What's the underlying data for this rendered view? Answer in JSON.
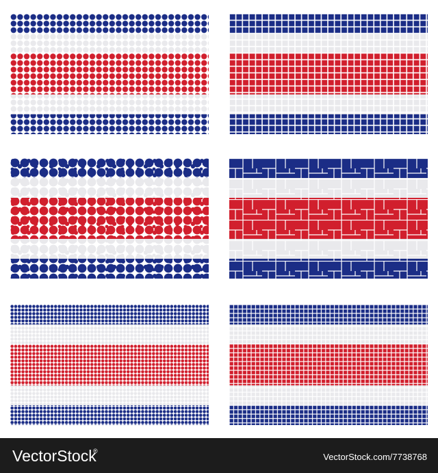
{
  "watermark": {
    "brand": "VectorStock",
    "registered": "®",
    "url": "VectorStock.com/7738768"
  }
}
